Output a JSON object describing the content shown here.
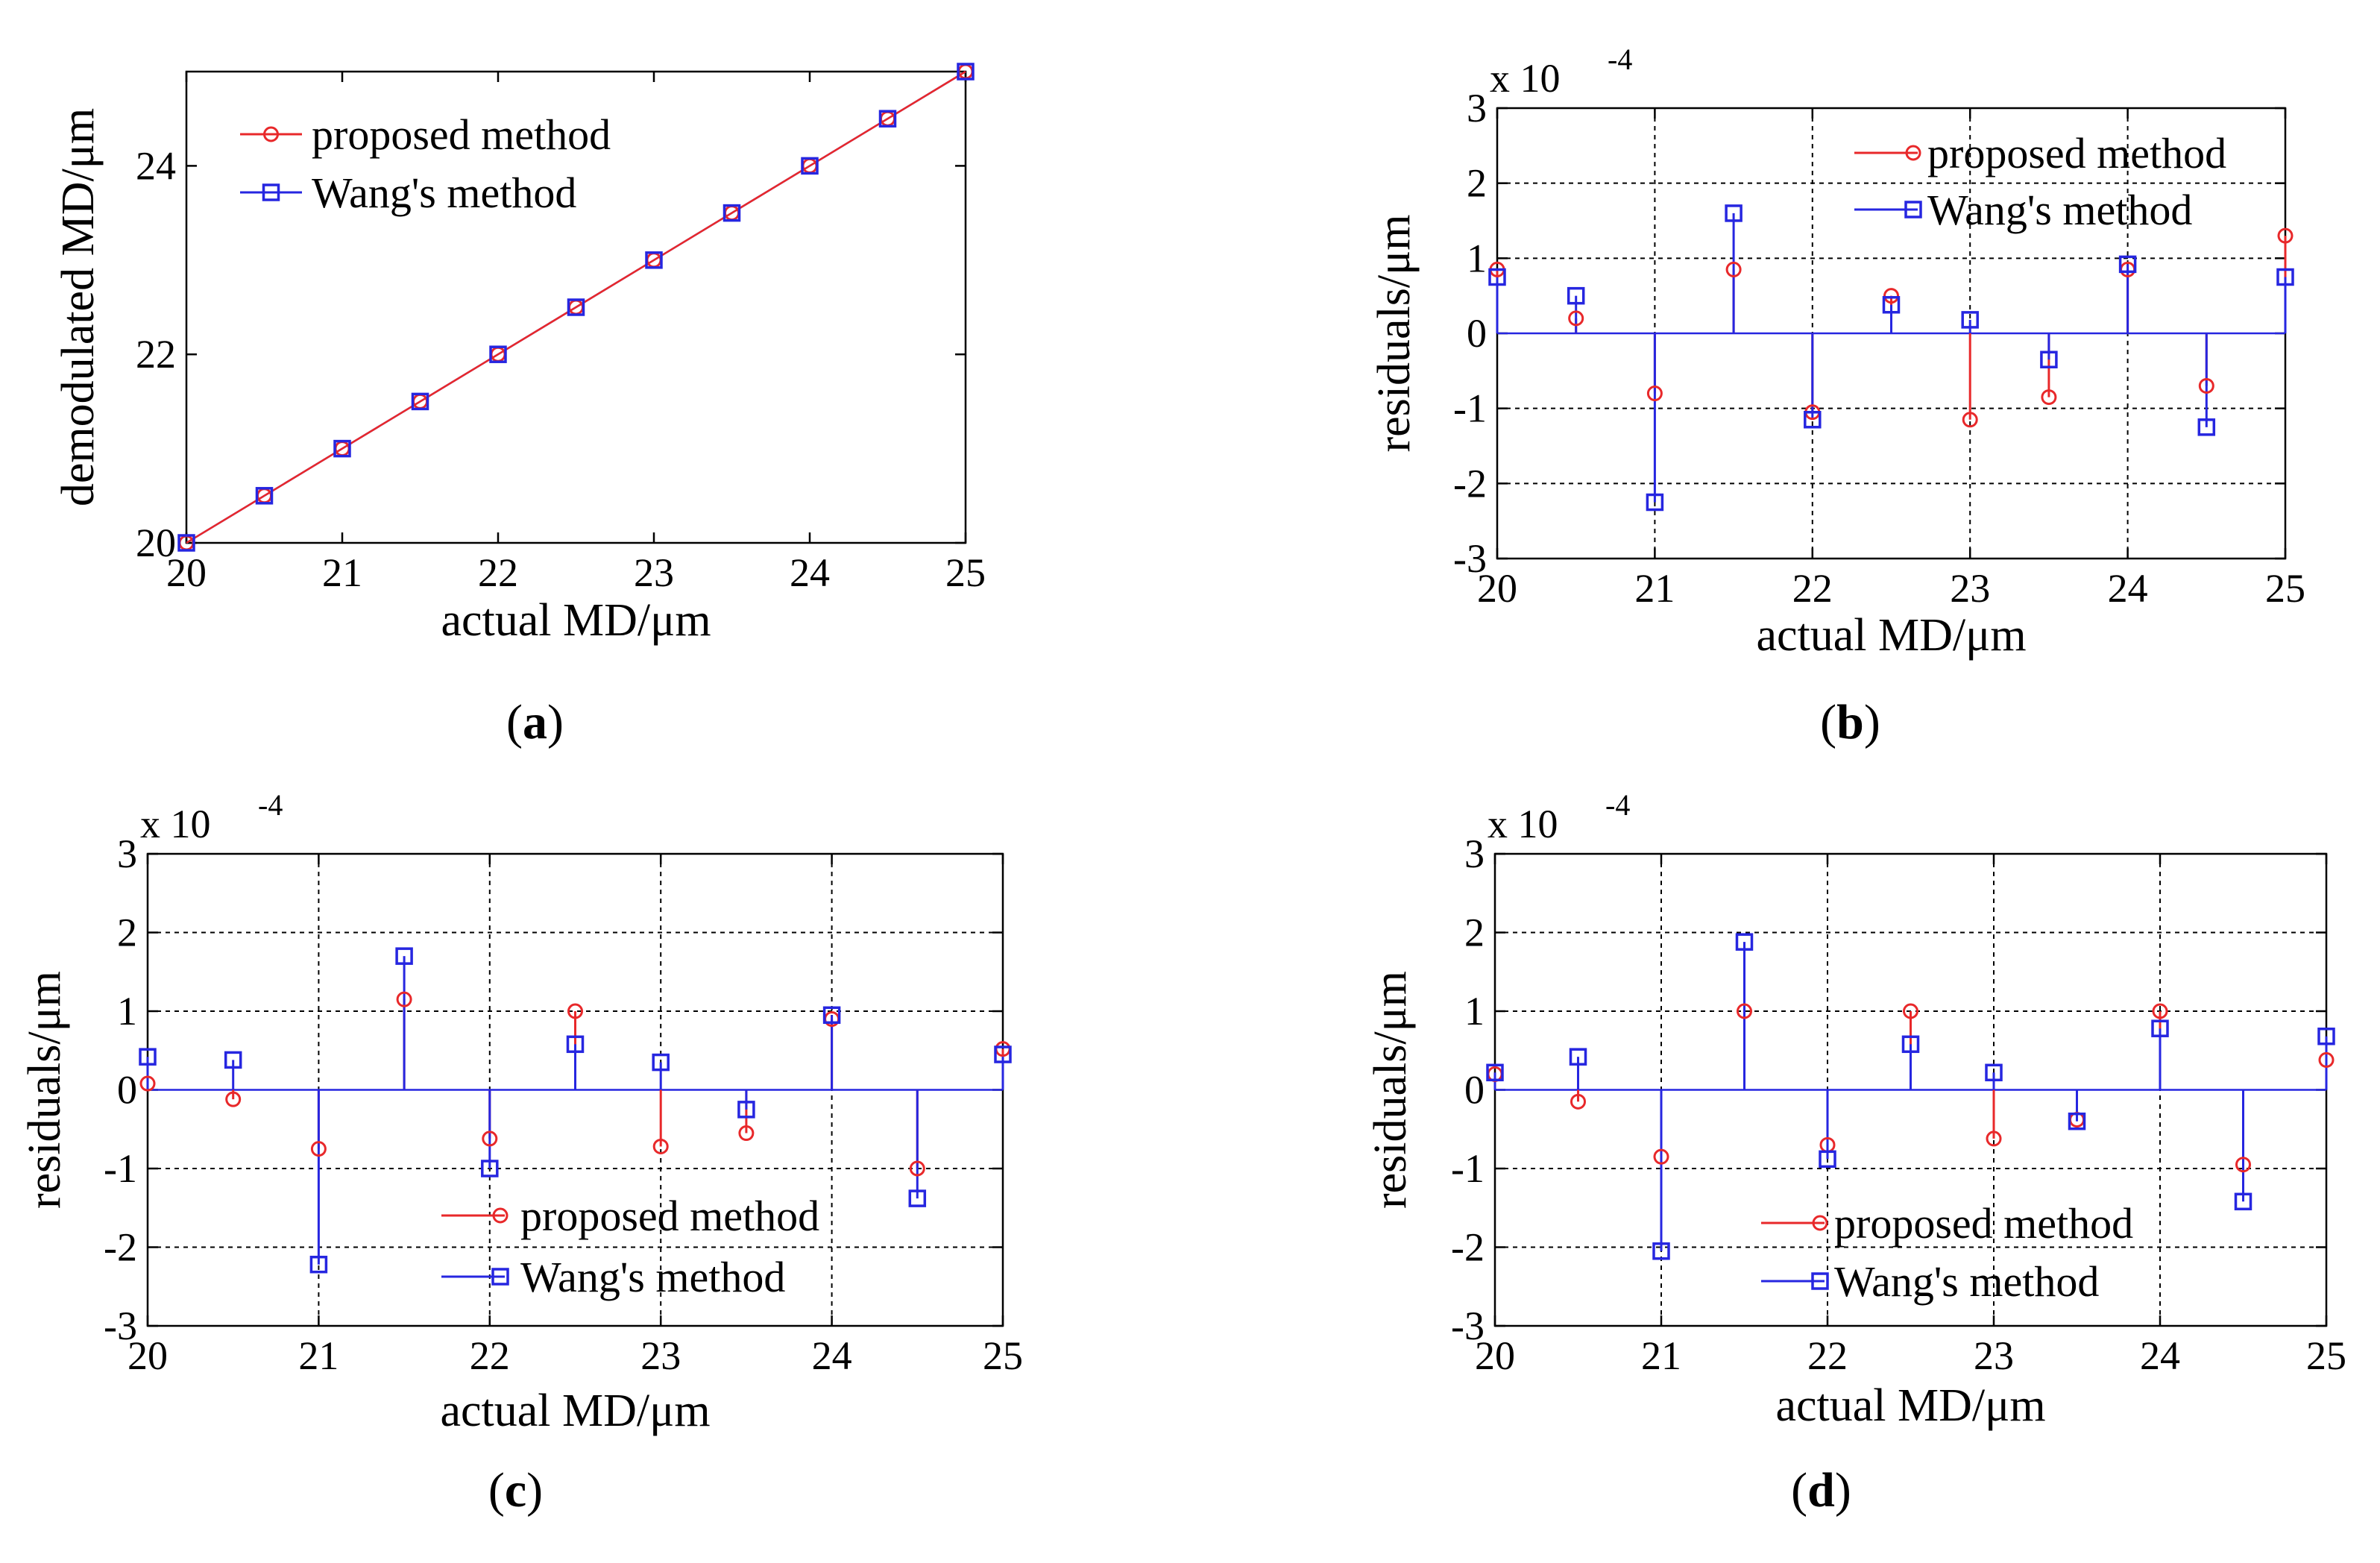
{
  "figure": {
    "colors": {
      "proposed": "#e8282a",
      "wang": "#2626e0",
      "axis": "#000000",
      "grid": "#000000",
      "text": "#000000"
    }
  },
  "chart_data": [
    {
      "id": "a",
      "panel_label": "(a)",
      "panel_letter": "a",
      "type": "line",
      "title": "",
      "xlabel": "actual MD/μm",
      "ylabel": "demodulated MD/μm",
      "exponent_label": "",
      "xlim": [
        20,
        25
      ],
      "ylim": [
        20,
        25
      ],
      "xticks": [
        20,
        21,
        22,
        23,
        24,
        25
      ],
      "yticks": [
        20,
        22,
        24
      ],
      "x_tick_labels": [
        "20",
        "21",
        "22",
        "23",
        "24",
        "25"
      ],
      "y_tick_labels": [
        "20",
        "22",
        "24"
      ],
      "grid": false,
      "legend_position": "top-left",
      "x": [
        20,
        20.5,
        21,
        21.5,
        22,
        22.5,
        23,
        23.5,
        24,
        24.5,
        25
      ],
      "series": [
        {
          "name": "proposed method",
          "marker": "circle",
          "color_key": "proposed",
          "values": [
            20,
            20.5,
            21,
            21.5,
            22,
            22.5,
            23,
            23.5,
            24,
            24.5,
            25
          ]
        },
        {
          "name": "Wang's method",
          "marker": "square",
          "color_key": "wang",
          "values": [
            20,
            20.5,
            21,
            21.5,
            22,
            22.5,
            23,
            23.5,
            24,
            24.5,
            25
          ]
        }
      ]
    },
    {
      "id": "b",
      "panel_label": "(b)",
      "panel_letter": "b",
      "type": "stem",
      "title": "",
      "xlabel": "actual MD/μm",
      "ylabel": "residuals/μm",
      "exponent_label": "x 10",
      "exponent_power": "-4",
      "xlim": [
        20,
        25
      ],
      "ylim": [
        -3,
        3
      ],
      "xticks": [
        20,
        21,
        22,
        23,
        24,
        25
      ],
      "yticks": [
        -3,
        -2,
        -1,
        0,
        1,
        2,
        3
      ],
      "x_tick_labels": [
        "20",
        "21",
        "22",
        "23",
        "24",
        "25"
      ],
      "y_tick_labels": [
        "-3",
        "-2",
        "-1",
        "0",
        "1",
        "2",
        "3"
      ],
      "grid": true,
      "legend_position": "top-right",
      "x": [
        20,
        20.5,
        21,
        21.5,
        22,
        22.5,
        23,
        23.5,
        24,
        24.5,
        25
      ],
      "series": [
        {
          "name": "proposed method",
          "marker": "circle",
          "color_key": "proposed",
          "values": [
            0.85,
            0.2,
            -0.8,
            0.85,
            -1.05,
            0.5,
            -1.15,
            -0.85,
            0.85,
            -0.7,
            1.3
          ]
        },
        {
          "name": "Wang's method",
          "marker": "square",
          "color_key": "wang",
          "values": [
            0.75,
            0.5,
            -2.25,
            1.6,
            -1.15,
            0.38,
            0.18,
            -0.35,
            0.92,
            -1.25,
            0.75
          ]
        }
      ]
    },
    {
      "id": "c",
      "panel_label": "(c)",
      "panel_letter": "c",
      "type": "stem",
      "title": "",
      "xlabel": "actual MD/μm",
      "ylabel": "residuals/μm",
      "exponent_label": "x 10",
      "exponent_power": "-4",
      "xlim": [
        20,
        25
      ],
      "ylim": [
        -3,
        3
      ],
      "xticks": [
        20,
        21,
        22,
        23,
        24,
        25
      ],
      "yticks": [
        -3,
        -2,
        -1,
        0,
        1,
        2,
        3
      ],
      "x_tick_labels": [
        "20",
        "21",
        "22",
        "23",
        "24",
        "25"
      ],
      "y_tick_labels": [
        "-3",
        "-2",
        "-1",
        "0",
        "1",
        "2",
        "3"
      ],
      "grid": true,
      "legend_position": "bottom-right",
      "x": [
        20,
        20.5,
        21,
        21.5,
        22,
        22.5,
        23,
        23.5,
        24,
        24.5,
        25
      ],
      "series": [
        {
          "name": "proposed method",
          "marker": "circle",
          "color_key": "proposed",
          "values": [
            0.08,
            -0.12,
            -0.75,
            1.15,
            -0.62,
            1.0,
            -0.72,
            -0.55,
            0.9,
            -1.0,
            0.52
          ]
        },
        {
          "name": "Wang's method",
          "marker": "square",
          "color_key": "wang",
          "values": [
            0.42,
            0.38,
            -2.22,
            1.7,
            -1.0,
            0.58,
            0.35,
            -0.25,
            0.95,
            -1.38,
            0.45
          ]
        }
      ]
    },
    {
      "id": "d",
      "panel_label": "(d)",
      "panel_letter": "d",
      "type": "stem",
      "title": "",
      "xlabel": "actual MD/μm",
      "ylabel": "residuals/μm",
      "exponent_label": "x 10",
      "exponent_power": "-4",
      "xlim": [
        20,
        25
      ],
      "ylim": [
        -3,
        3
      ],
      "xticks": [
        20,
        21,
        22,
        23,
        24,
        25
      ],
      "yticks": [
        -3,
        -2,
        -1,
        0,
        1,
        2,
        3
      ],
      "x_tick_labels": [
        "20",
        "21",
        "22",
        "23",
        "24",
        "25"
      ],
      "y_tick_labels": [
        "-3",
        "-2",
        "-1",
        "0",
        "1",
        "2",
        "3"
      ],
      "grid": true,
      "legend_position": "bottom-right",
      "x": [
        20,
        20.5,
        21,
        21.5,
        22,
        22.5,
        23,
        23.5,
        24,
        24.5,
        25
      ],
      "series": [
        {
          "name": "proposed method",
          "marker": "circle",
          "color_key": "proposed",
          "values": [
            0.2,
            -0.15,
            -0.85,
            1.0,
            -0.7,
            1.0,
            -0.62,
            -0.38,
            1.0,
            -0.95,
            0.38
          ]
        },
        {
          "name": "Wang's method",
          "marker": "square",
          "color_key": "wang",
          "values": [
            0.22,
            0.42,
            -2.05,
            1.88,
            -0.88,
            0.58,
            0.22,
            -0.4,
            0.78,
            -1.42,
            0.68
          ]
        }
      ]
    }
  ]
}
